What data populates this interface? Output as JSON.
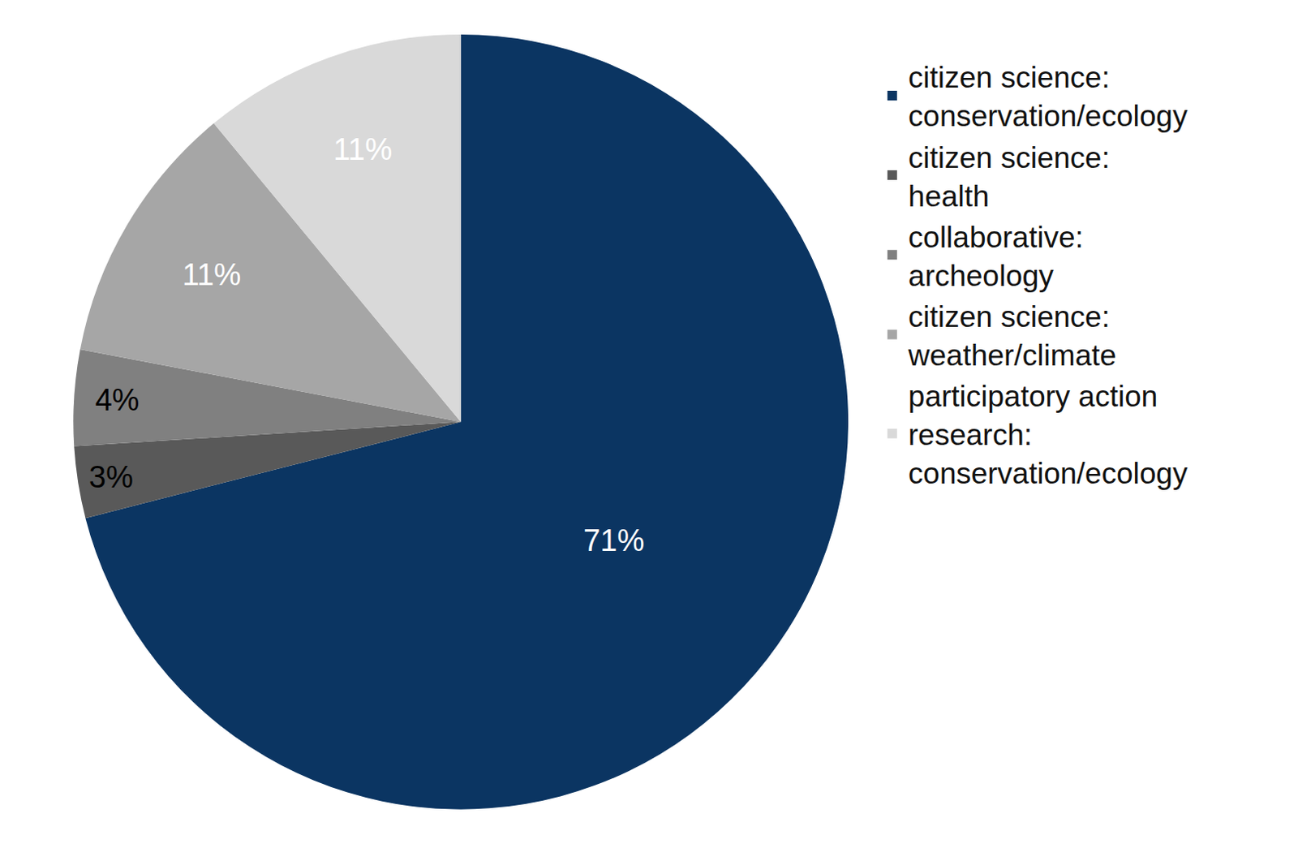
{
  "chart_data": {
    "type": "pie",
    "categories": [
      "citizen science: conservation/ecology",
      "citizen science: health",
      "collaborative: archeology",
      "citizen science: weather/climate",
      "participatory action research: conservation/ecology"
    ],
    "values": [
      71,
      3,
      4,
      11,
      11
    ],
    "value_labels": [
      "71%",
      "3%",
      "4%",
      "11%",
      "11%"
    ],
    "colors": [
      "#0b3562",
      "#595959",
      "#808080",
      "#a6a6a6",
      "#d9d9d9"
    ],
    "data_labels": true,
    "legend": "right"
  }
}
